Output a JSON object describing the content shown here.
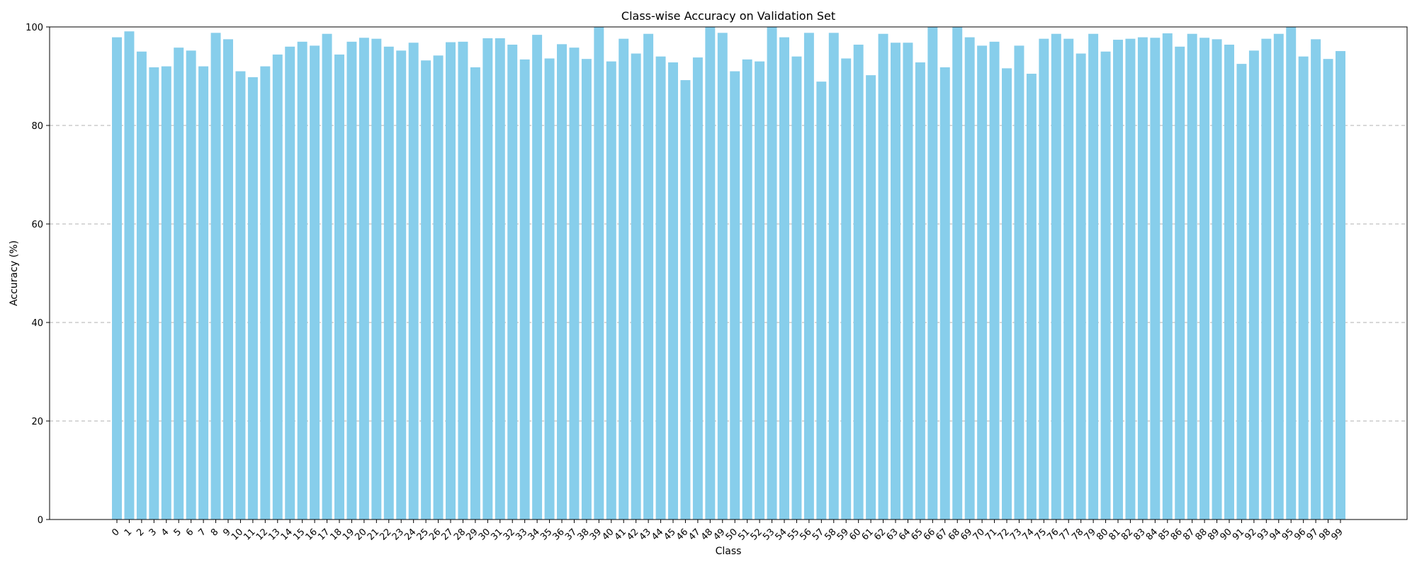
{
  "chart_data": {
    "type": "bar",
    "title": "Class-wise Accuracy on Validation Set",
    "xlabel": "Class",
    "ylabel": "Accuracy (%)",
    "ylim": [
      0,
      100
    ],
    "yticks": [
      0,
      20,
      40,
      60,
      80,
      100
    ],
    "grid": "y-dashed",
    "bar_color": "#87ceeb",
    "categories": [
      "0",
      "1",
      "2",
      "3",
      "4",
      "5",
      "6",
      "7",
      "8",
      "9",
      "10",
      "11",
      "12",
      "13",
      "14",
      "15",
      "16",
      "17",
      "18",
      "19",
      "20",
      "21",
      "22",
      "23",
      "24",
      "25",
      "26",
      "27",
      "28",
      "29",
      "30",
      "31",
      "32",
      "33",
      "34",
      "35",
      "36",
      "37",
      "38",
      "39",
      "40",
      "41",
      "42",
      "43",
      "44",
      "45",
      "46",
      "47",
      "48",
      "49",
      "50",
      "51",
      "52",
      "53",
      "54",
      "55",
      "56",
      "57",
      "58",
      "59",
      "60",
      "61",
      "62",
      "63",
      "64",
      "65",
      "66",
      "67",
      "68",
      "69",
      "70",
      "71",
      "72",
      "73",
      "74",
      "75",
      "76",
      "77",
      "78",
      "79",
      "80",
      "81",
      "82",
      "83",
      "84",
      "85",
      "86",
      "87",
      "88",
      "89",
      "90",
      "91",
      "92",
      "93",
      "94",
      "95",
      "96",
      "97",
      "98",
      "99"
    ],
    "values": [
      97.9,
      99.1,
      95.0,
      91.8,
      92.0,
      95.8,
      95.2,
      92.0,
      98.8,
      97.5,
      91.0,
      89.8,
      92.0,
      94.4,
      96.0,
      97.0,
      96.2,
      98.6,
      94.4,
      97.0,
      97.8,
      97.6,
      96.0,
      95.2,
      96.8,
      93.2,
      94.2,
      96.9,
      97.0,
      91.8,
      97.7,
      97.7,
      96.4,
      93.4,
      98.4,
      93.6,
      96.5,
      95.8,
      93.5,
      100.0,
      93.0,
      97.6,
      94.6,
      98.6,
      94.0,
      92.8,
      89.2,
      93.8,
      100.0,
      98.8,
      91.0,
      93.4,
      93.0,
      100.0,
      97.9,
      94.0,
      98.8,
      88.9,
      98.8,
      93.6,
      96.4,
      90.2,
      98.6,
      96.8,
      96.8,
      92.8,
      100.0,
      91.8,
      100.0,
      97.9,
      96.2,
      97.0,
      91.6,
      96.2,
      90.5,
      97.6,
      98.6,
      97.6,
      94.6,
      98.6,
      95.0,
      97.4,
      97.6,
      97.9,
      97.8,
      98.7,
      96.0,
      98.6,
      97.8,
      97.5,
      96.4,
      92.5,
      95.2,
      97.6,
      98.6,
      100.0,
      94.0,
      97.5,
      93.5,
      95.1
    ]
  }
}
